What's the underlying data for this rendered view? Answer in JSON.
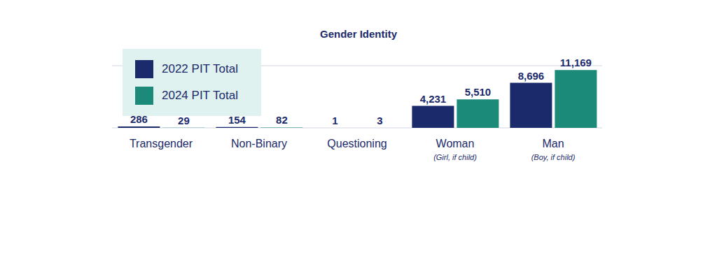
{
  "chart_data": {
    "type": "bar",
    "title": "Gender Identity",
    "categories": [
      "Transgender",
      "Non-Binary",
      "Questioning",
      "Woman",
      "Man"
    ],
    "category_subtitles": [
      null,
      null,
      null,
      "(Girl, if child)",
      "(Boy, if child)"
    ],
    "series": [
      {
        "name": "2022 PIT Total",
        "color": "#1b2a6b",
        "values": [
          286,
          154,
          1,
          4231,
          8696
        ],
        "value_labels": [
          "286",
          "154",
          "1",
          "4,231",
          "8,696"
        ]
      },
      {
        "name": "2024 PIT Total",
        "color": "#1b8a78",
        "values": [
          29,
          82,
          3,
          5510,
          11169
        ],
        "value_labels": [
          "29",
          "82",
          "3",
          "5,510",
          "11,169"
        ]
      }
    ],
    "ylim": [
      0,
      12000
    ],
    "yticks": [
      0,
      2000,
      4000,
      6000,
      8000,
      10000,
      12000
    ],
    "grid": true,
    "legend": "upper left",
    "data_labels": true,
    "tick_labels": "x"
  }
}
